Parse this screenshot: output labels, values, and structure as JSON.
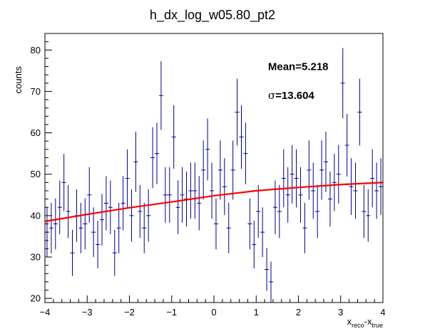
{
  "chart_data": {
    "type": "histogram",
    "title": "h_dx_log_w05.80_pt2",
    "ylabel": "counts",
    "xlabel": {
      "base": "x",
      "sub1": "reco",
      "sep": "-x",
      "sub2": "true"
    },
    "xlim": [
      -4,
      4
    ],
    "ylim": [
      19,
      84
    ],
    "x_ticks": [
      -4,
      -3,
      -2,
      -1,
      0,
      1,
      2,
      3,
      4
    ],
    "x_tick_labels": [
      "−4",
      "−3",
      "−2",
      "−1",
      "0",
      "1",
      "2",
      "3",
      "4"
    ],
    "y_ticks": [
      20,
      30,
      40,
      50,
      60,
      70,
      80
    ],
    "y_tick_labels": [
      "20",
      "30",
      "40",
      "50",
      "60",
      "70",
      "80"
    ],
    "bin_width": 0.1,
    "bins_x": [
      -3.95,
      -3.85,
      -3.75,
      -3.65,
      -3.55,
      -3.45,
      -3.35,
      -3.25,
      -3.15,
      -3.05,
      -2.95,
      -2.85,
      -2.75,
      -2.65,
      -2.55,
      -2.45,
      -2.35,
      -2.25,
      -2.15,
      -2.05,
      -1.95,
      -1.85,
      -1.75,
      -1.65,
      -1.55,
      -1.45,
      -1.35,
      -1.25,
      -1.15,
      -1.05,
      -0.95,
      -0.85,
      -0.75,
      -0.65,
      -0.55,
      -0.45,
      -0.35,
      -0.25,
      -0.15,
      -0.05,
      0.05,
      0.15,
      0.25,
      0.35,
      0.45,
      0.55,
      0.65,
      0.75,
      0.85,
      0.95,
      1.05,
      1.15,
      1.25,
      1.35,
      1.45,
      1.55,
      1.65,
      1.75,
      1.85,
      1.95,
      2.05,
      2.15,
      2.25,
      2.35,
      2.45,
      2.55,
      2.65,
      2.75,
      2.85,
      2.95,
      3.05,
      3.15,
      3.25,
      3.35,
      3.45,
      3.55,
      3.65,
      3.75,
      3.85,
      3.95
    ],
    "bins_y": [
      36,
      37,
      38,
      42,
      48,
      41,
      31,
      40,
      37,
      38,
      45,
      36,
      33,
      39,
      43,
      42,
      31,
      37,
      43,
      49,
      40,
      53,
      41,
      37,
      40,
      54,
      55,
      69,
      45,
      45,
      59,
      42,
      45,
      44,
      46,
      46,
      43,
      51,
      56,
      46,
      38,
      51,
      47,
      37,
      51,
      65,
      59,
      55,
      38,
      33,
      41,
      36,
      27,
      24,
      42,
      41,
      49,
      45,
      50,
      49,
      45,
      37,
      51,
      46,
      41,
      51,
      53,
      44,
      48,
      50,
      72,
      57,
      47,
      46,
      65,
      41,
      40,
      49,
      46,
      47
    ],
    "series": [
      {
        "name": "",
        "type": "fit",
        "color": "#ff0000",
        "x": [
          -4,
          -3,
          -2,
          -1,
          0,
          1,
          2,
          3,
          4
        ],
        "y": [
          38.6,
          40.3,
          41.9,
          43.3,
          44.8,
          46.0,
          46.8,
          47.5,
          48.0
        ]
      }
    ],
    "colors": {
      "data": "#000080",
      "fit": "#ff0000",
      "frame": "#000000"
    },
    "annotations": [
      {
        "label": "Mean=5.218",
        "x": 1.5,
        "y": 76
      },
      {
        "label_symbol": "σ",
        "label_value": "=13.604",
        "x": 1.5,
        "y": 69
      }
    ],
    "grid": false,
    "legend": "none"
  }
}
